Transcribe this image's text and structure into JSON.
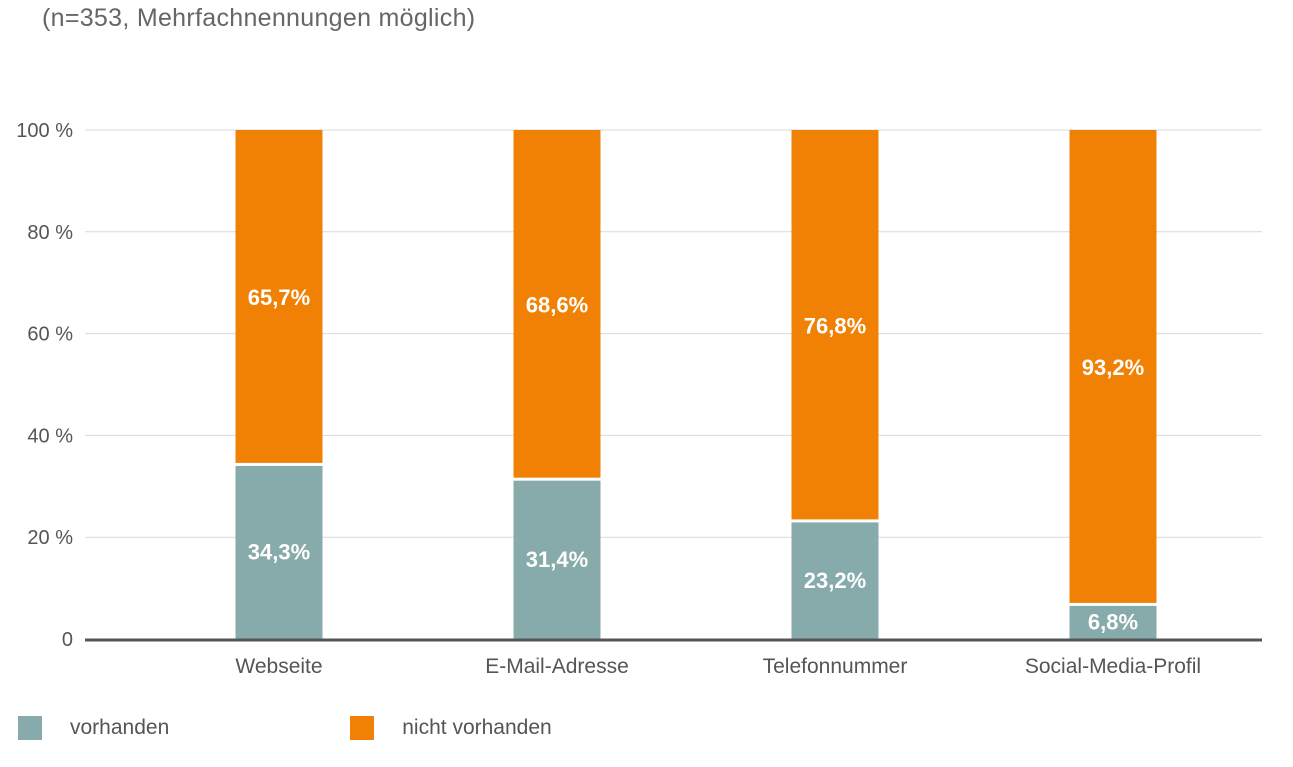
{
  "subtitle": "(n=353, Mehrfachnennungen möglich)",
  "colors": {
    "vorhanden": "#86ABAA",
    "nicht_vorhanden": "#F08104",
    "grid": "#D9D9D9",
    "axis": "#555555"
  },
  "legend": [
    {
      "label": "vorhanden",
      "color": "#86ABAA"
    },
    {
      "label": "nicht vorhanden",
      "color": "#F08104"
    }
  ],
  "chart_data": {
    "type": "bar",
    "stacked": true,
    "categories": [
      "Webseite",
      "E-Mail-Adresse",
      "Telefonnummer",
      "Social-Media-Profil"
    ],
    "series": [
      {
        "name": "vorhanden",
        "values": [
          34.3,
          31.4,
          23.2,
          6.8
        ],
        "labels": [
          "34,3%",
          "31,4%",
          "23,2%",
          "6,8%"
        ]
      },
      {
        "name": "nicht vorhanden",
        "values": [
          65.7,
          68.6,
          76.8,
          93.2
        ],
        "labels": [
          "65,7%",
          "68,6%",
          "76,8%",
          "93,2%"
        ]
      }
    ],
    "yticks": [
      0,
      20,
      40,
      60,
      80,
      100
    ],
    "ytick_labels": [
      "0",
      "20 %",
      "40 %",
      "60 %",
      "80 %",
      "100 %"
    ],
    "ylim": [
      0,
      100
    ],
    "grid": true,
    "legend_position": "bottom-left"
  }
}
